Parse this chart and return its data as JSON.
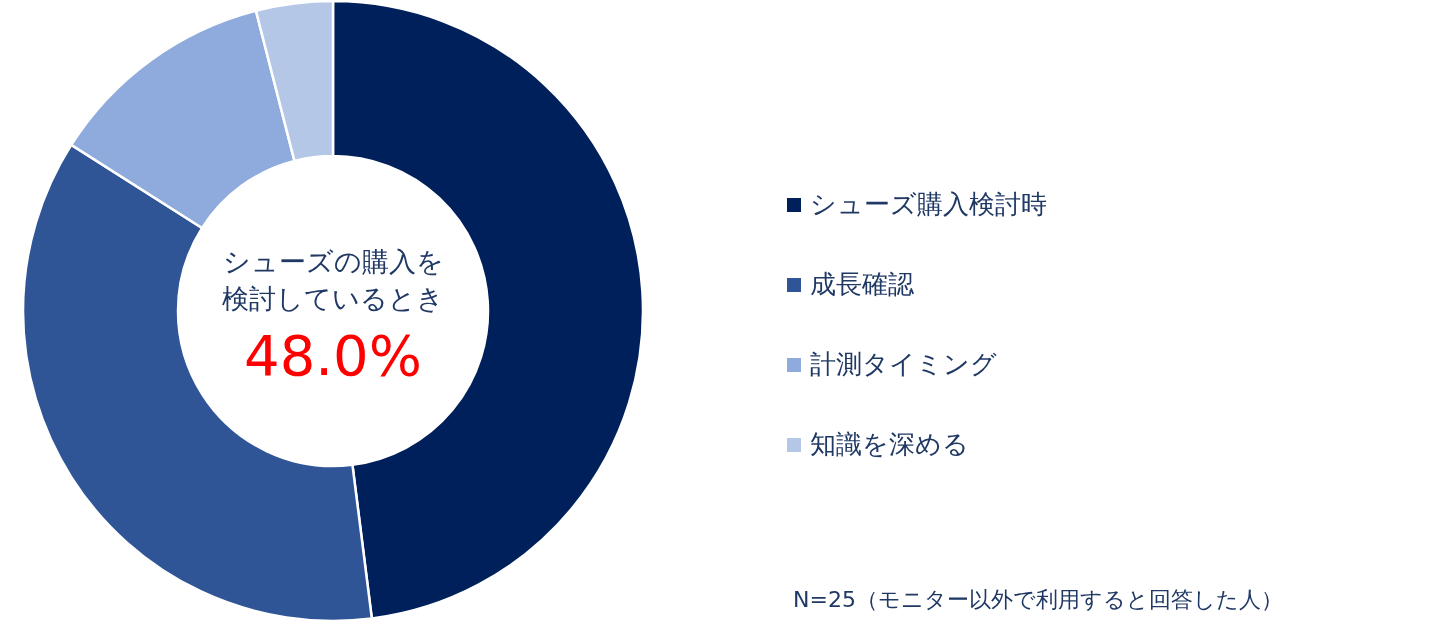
{
  "chart_data": {
    "type": "donut",
    "categories": [
      "シューズ購入検討時",
      "成長確認",
      "計測タイミング",
      "知識を深める"
    ],
    "values": [
      48,
      36,
      12,
      4
    ],
    "colors": [
      "#00205b",
      "#2f5597",
      "#8faadc",
      "#b4c7e7"
    ],
    "legend": "right",
    "annotations": [
      "シューズの購入を検討しているとき",
      "48.0%",
      "N=25（モニター以外で利用すると回答した人）"
    ]
  }
}
